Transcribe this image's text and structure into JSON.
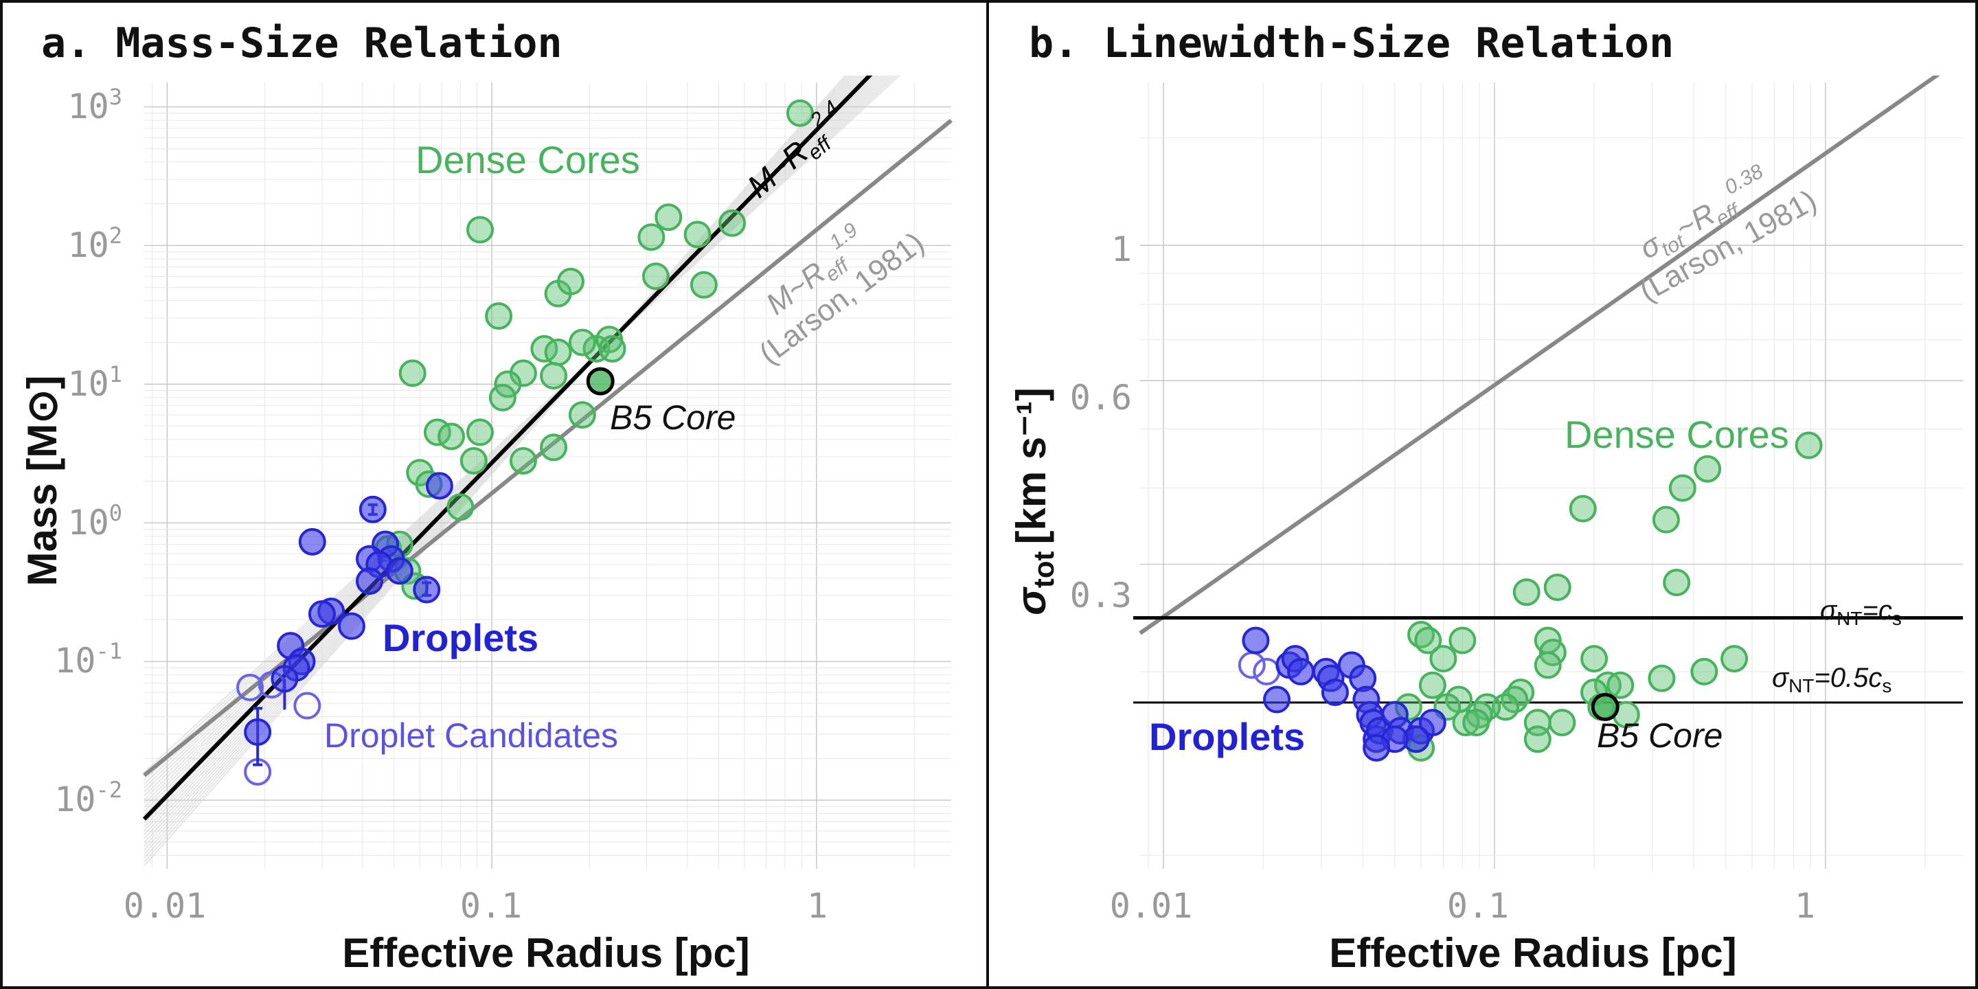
{
  "figure": {
    "panel_a_title": "a. Mass-Size Relation",
    "panel_b_title": "b. Linewidth-Size Relation",
    "x_title": "Effective Radius [pc]",
    "y_title_a": "Mass [M⊙]",
    "y_title_b_main": "σ",
    "y_title_b_sub": "tot",
    "y_title_b_unit": "[km s⁻¹]",
    "colors": {
      "dense": "#47b35d",
      "droplets": "#2626d4",
      "candidates": "#6a63e8",
      "fit": "#000000",
      "larson": "#888888",
      "tick": "#999999"
    }
  },
  "chart_data": [
    {
      "type": "scatter",
      "panel": "a",
      "title": "a. Mass-Size Relation",
      "xlabel": "Effective Radius [pc]",
      "ylabel": "Mass [M⊙]",
      "xscale": "log",
      "yscale": "log",
      "xlim": [
        0.0085,
        2.6
      ],
      "ylim": [
        0.0032,
        1500
      ],
      "x_ticks": [
        {
          "v": 0.01,
          "label": "0.01"
        },
        {
          "v": 0.1,
          "label": "0.1"
        },
        {
          "v": 1,
          "label": "1"
        }
      ],
      "y_ticks": [
        {
          "v": 0.01,
          "base": "10",
          "exp": "-2"
        },
        {
          "v": 0.1,
          "base": "10",
          "exp": "-1"
        },
        {
          "v": 1,
          "base": "10",
          "exp": "0"
        },
        {
          "v": 10,
          "base": "10",
          "exp": "1"
        },
        {
          "v": 100,
          "base": "10",
          "exp": "2"
        },
        {
          "v": 1000,
          "base": "10",
          "exp": "3"
        }
      ],
      "annotations": {
        "dense": "Dense Cores",
        "droplets": "Droplets",
        "candidates": "Droplet Candidates",
        "b5": "B5 Core",
        "fit_main": "M~R",
        "fit_sub": "eff",
        "fit_exp": "2.4",
        "larson_main": "M~R",
        "larson_sub": "eff",
        "larson_exp": "1.9",
        "larson_cite": "(Larson, 1981)"
      },
      "fit_line": {
        "slope": 2.4,
        "ref_x": 0.216,
        "ref_y": 17.2
      },
      "larson_line": {
        "slope": 1.9,
        "ref_x": 0.2,
        "ref_y": 6.1
      },
      "dense_cores": [
        [
          0.89,
          900
        ],
        [
          0.31,
          115
        ],
        [
          0.35,
          160
        ],
        [
          0.43,
          120
        ],
        [
          0.55,
          145
        ],
        [
          0.45,
          52
        ],
        [
          0.32,
          60
        ],
        [
          0.21,
          18
        ],
        [
          0.23,
          21
        ],
        [
          0.235,
          18
        ],
        [
          0.19,
          20
        ],
        [
          0.16,
          45
        ],
        [
          0.175,
          55
        ],
        [
          0.145,
          18
        ],
        [
          0.16,
          17
        ],
        [
          0.155,
          11.5
        ],
        [
          0.125,
          12
        ],
        [
          0.112,
          10
        ],
        [
          0.108,
          8
        ],
        [
          0.105,
          31
        ],
        [
          0.092,
          130
        ],
        [
          0.057,
          12
        ],
        [
          0.068,
          4.5
        ],
        [
          0.075,
          4.2
        ],
        [
          0.092,
          4.5
        ],
        [
          0.088,
          2.8
        ],
        [
          0.125,
          2.8
        ],
        [
          0.155,
          3.5
        ],
        [
          0.19,
          6
        ],
        [
          0.06,
          2.3
        ],
        [
          0.064,
          1.9
        ],
        [
          0.08,
          1.3
        ],
        [
          0.048,
          0.65
        ],
        [
          0.052,
          0.7
        ],
        [
          0.055,
          0.45
        ],
        [
          0.058,
          0.35
        ]
      ],
      "droplets": [
        [
          0.069,
          1.85
        ],
        [
          0.043,
          1.25
        ],
        [
          0.028,
          0.73
        ],
        [
          0.047,
          0.7
        ],
        [
          0.042,
          0.55
        ],
        [
          0.049,
          0.55
        ],
        [
          0.045,
          0.5
        ],
        [
          0.052,
          0.45
        ],
        [
          0.042,
          0.38
        ],
        [
          0.063,
          0.33
        ],
        [
          0.032,
          0.23
        ],
        [
          0.03,
          0.22
        ],
        [
          0.037,
          0.18
        ],
        [
          0.024,
          0.13
        ],
        [
          0.026,
          0.1
        ],
        [
          0.025,
          0.09
        ],
        [
          0.023,
          0.075
        ],
        [
          0.019,
          0.031
        ]
      ],
      "droplet_errors": [
        {
          "x": 0.019,
          "lo": 0.018,
          "hi": 0.046
        },
        {
          "x": 0.043,
          "lo": 1.15,
          "hi": 1.35
        },
        {
          "x": 0.063,
          "lo": 0.3,
          "hi": 0.37
        }
      ],
      "candidates": [
        [
          0.018,
          0.065
        ],
        [
          0.021,
          0.068
        ],
        [
          0.027,
          0.048
        ],
        [
          0.019,
          0.016
        ]
      ],
      "candidate_errors": [
        {
          "x": 0.023,
          "lo": 0.045,
          "hi": 0.075
        }
      ],
      "b5_core": [
        0.216,
        10.5
      ]
    },
    {
      "type": "scatter",
      "panel": "b",
      "title": "b. Linewidth-Size Relation",
      "xlabel": "Effective Radius [pc]",
      "ylabel": "σtot [km s⁻¹]",
      "xscale": "log",
      "yscale": "log",
      "xlim": [
        0.0085,
        2.6
      ],
      "ylim": [
        0.095,
        1.85
      ],
      "x_ticks": [
        {
          "v": 0.01,
          "label": "0.01"
        },
        {
          "v": 0.1,
          "label": "0.1"
        },
        {
          "v": 1,
          "label": "1"
        }
      ],
      "y_ticks": [
        {
          "v": 0.3,
          "label": "0.3"
        },
        {
          "v": 0.6,
          "label": "0.6"
        },
        {
          "v": 1,
          "label": "1"
        }
      ],
      "annotations": {
        "dense": "Dense Cores",
        "droplets": "Droplets",
        "b5": "B5 Core",
        "larson_main": "σ",
        "larson_sub1": "tot",
        "larson_mid": "~R",
        "larson_sub2": "eff",
        "larson_exp": "0.38",
        "larson_cite": "(Larson, 1981)",
        "cs_main": "σ",
        "cs_sub": "NT",
        "cs_eq": "=c",
        "cs_s": "s",
        "half_cs_main": "σ",
        "half_cs_sub": "NT",
        "half_cs_eq": "=0.5c",
        "half_cs_s": "s"
      },
      "larson_line": {
        "slope": 0.38,
        "ref_x": 0.1,
        "ref_y": 0.59
      },
      "hlines": [
        {
          "y": 0.245,
          "name": "sigma_nt_cs"
        },
        {
          "y": 0.178,
          "name": "sigma_nt_half_cs"
        }
      ],
      "dense_cores": [
        [
          0.89,
          0.47
        ],
        [
          0.44,
          0.43
        ],
        [
          0.37,
          0.4
        ],
        [
          0.33,
          0.355
        ],
        [
          0.355,
          0.28
        ],
        [
          0.53,
          0.21
        ],
        [
          0.43,
          0.2
        ],
        [
          0.32,
          0.195
        ],
        [
          0.185,
          0.37
        ],
        [
          0.155,
          0.275
        ],
        [
          0.125,
          0.27
        ],
        [
          0.145,
          0.225
        ],
        [
          0.15,
          0.215
        ],
        [
          0.145,
          0.205
        ],
        [
          0.2,
          0.21
        ],
        [
          0.22,
          0.19
        ],
        [
          0.24,
          0.19
        ],
        [
          0.2,
          0.185
        ],
        [
          0.21,
          0.175
        ],
        [
          0.25,
          0.17
        ],
        [
          0.16,
          0.165
        ],
        [
          0.135,
          0.165
        ],
        [
          0.135,
          0.155
        ],
        [
          0.12,
          0.185
        ],
        [
          0.115,
          0.18
        ],
        [
          0.108,
          0.175
        ],
        [
          0.095,
          0.175
        ],
        [
          0.09,
          0.17
        ],
        [
          0.082,
          0.165
        ],
        [
          0.078,
          0.18
        ],
        [
          0.072,
          0.175
        ],
        [
          0.07,
          0.21
        ],
        [
          0.08,
          0.225
        ],
        [
          0.06,
          0.23
        ],
        [
          0.063,
          0.225
        ],
        [
          0.065,
          0.19
        ],
        [
          0.055,
          0.175
        ],
        [
          0.058,
          0.155
        ],
        [
          0.06,
          0.15
        ],
        [
          0.088,
          0.165
        ]
      ],
      "droplets": [
        [
          0.019,
          0.225
        ],
        [
          0.024,
          0.205
        ],
        [
          0.025,
          0.21
        ],
        [
          0.026,
          0.2
        ],
        [
          0.022,
          0.18
        ],
        [
          0.031,
          0.2
        ],
        [
          0.032,
          0.195
        ],
        [
          0.033,
          0.185
        ],
        [
          0.037,
          0.205
        ],
        [
          0.04,
          0.195
        ],
        [
          0.041,
          0.18
        ],
        [
          0.042,
          0.17
        ],
        [
          0.043,
          0.165
        ],
        [
          0.044,
          0.155
        ],
        [
          0.045,
          0.16
        ],
        [
          0.05,
          0.17
        ],
        [
          0.052,
          0.16
        ],
        [
          0.06,
          0.16
        ],
        [
          0.065,
          0.165
        ],
        [
          0.058,
          0.155
        ],
        [
          0.05,
          0.155
        ],
        [
          0.044,
          0.15
        ]
      ],
      "candidates": [
        [
          0.0185,
          0.205
        ],
        [
          0.0205,
          0.2
        ]
      ],
      "b5_core": [
        0.216,
        0.175
      ]
    }
  ]
}
